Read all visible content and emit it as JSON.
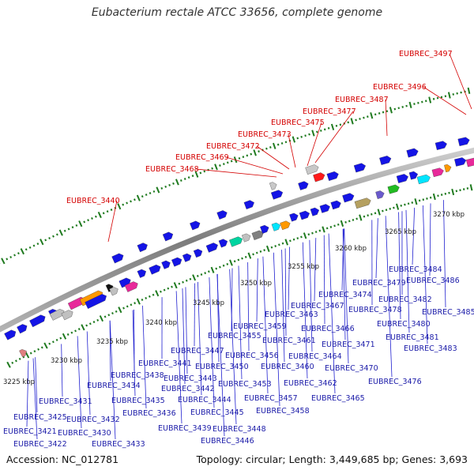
{
  "title": "Eubacterium rectale ATCC 33656, complete genome",
  "footer": {
    "accession": "Accession: NC_012781",
    "summary": "Topology: circular; Length: 3,449,685 bp; Genes: 3,693"
  },
  "scale_labels": [
    "3225 kbp",
    "3230 kbp",
    "3235 kbp",
    "3240 kbp",
    "3245 kbp",
    "3250 kbp",
    "3255 kbp",
    "3260 kbp",
    "3265 kbp",
    "3270 kbp"
  ],
  "labels_top": [
    "EUBREC_3440",
    "EUBREC_3468",
    "EUBREC_3469",
    "EUBREC_3472",
    "EUBREC_3473",
    "EUBREC_3475",
    "EUBREC_3477",
    "EUBREC_3487",
    "EUBREC_3496",
    "EUBREC_3497"
  ],
  "labels_bottom": [
    "EUBREC_3421",
    "EUBREC_3422",
    "EUBREC_3425",
    "EUBREC_3430",
    "EUBREC_3431",
    "EUBREC_3432",
    "EUBREC_3433",
    "EUBREC_3434",
    "EUBREC_3435",
    "EUBREC_3436",
    "EUBREC_3438",
    "EUBREC_3439",
    "EUBREC_3441",
    "EUBREC_3442",
    "EUBREC_3443",
    "EUBREC_3444",
    "EUBREC_3445",
    "EUBREC_3446",
    "EUBREC_3447",
    "EUBREC_3448",
    "EUBREC_3450",
    "EUBREC_3453",
    "EUBREC_3455",
    "EUBREC_3456",
    "EUBREC_3457",
    "EUBREC_3458",
    "EUBREC_3459",
    "EUBREC_3460",
    "EUBREC_3461",
    "EUBREC_3462",
    "EUBREC_3463",
    "EUBREC_3464",
    "EUBREC_3465",
    "EUBREC_3466",
    "EUBREC_3467",
    "EUBREC_3470",
    "EUBREC_3471",
    "EUBREC_3474",
    "EUBREC_3476",
    "EUBREC_3478",
    "EUBREC_3479",
    "EUBREC_3480",
    "EUBREC_3481",
    "EUBREC_3482",
    "EUBREC_3483",
    "EUBREC_3484",
    "EUBREC_3485",
    "EUBREC_3486"
  ],
  "colors": {
    "backbone": "#8a8a8a",
    "gene_forward": "#1414e6",
    "label_red": "#d40000",
    "label_blue": "#1a1aa8",
    "tick_green": "#1f7a1f"
  }
}
